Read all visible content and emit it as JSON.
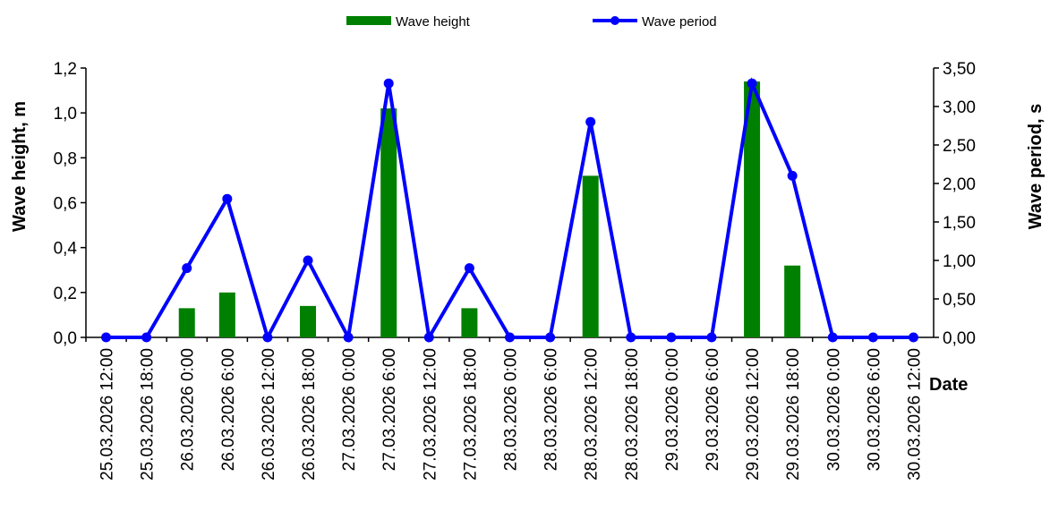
{
  "chart_data": {
    "type": "bar+line",
    "categories": [
      "25.03.2026 12:00",
      "25.03.2026 18:00",
      "26.03.2026 0:00",
      "26.03.2026 6:00",
      "26.03.2026 12:00",
      "26.03.2026 18:00",
      "27.03.2026 0:00",
      "27.03.2026 6:00",
      "27.03.2026 12:00",
      "27.03.2026 18:00",
      "28.03.2026 0:00",
      "28.03.2026 6:00",
      "28.03.2026 12:00",
      "28.03.2026 18:00",
      "29.03.2026 0:00",
      "29.03.2026 6:00",
      "29.03.2026 12:00",
      "29.03.2026 18:00",
      "30.03.2026 0:00",
      "30.03.2026 6:00",
      "30.03.2026 12:00"
    ],
    "series": [
      {
        "name": "Wave height",
        "type": "bar",
        "axis": "left",
        "color": "#008000",
        "values": [
          0,
          0,
          0.13,
          0.2,
          0,
          0.14,
          0,
          1.02,
          0,
          0.13,
          0,
          0,
          0.72,
          0,
          0,
          0,
          1.14,
          0.32,
          0,
          0,
          0
        ]
      },
      {
        "name": "Wave period",
        "type": "line",
        "axis": "right",
        "color": "#0000ff",
        "values": [
          0,
          0,
          0.9,
          1.8,
          0,
          1.0,
          0,
          3.3,
          0,
          0.9,
          0,
          0,
          2.8,
          0,
          0,
          0,
          3.3,
          2.1,
          0,
          0,
          0
        ]
      }
    ],
    "ylabel": "Wave height, m",
    "y2label": "Wave period, s",
    "xlabel": "Date",
    "ylim": [
      0,
      1.2
    ],
    "y2lim": [
      0,
      3.5
    ],
    "yticks": [
      "0,0",
      "0,2",
      "0,4",
      "0,6",
      "0,8",
      "1,0",
      "1,2"
    ],
    "y2ticks": [
      "0,00",
      "0,50",
      "1,00",
      "1,50",
      "2,00",
      "2,50",
      "3,00",
      "3,50"
    ],
    "legend_position": "top-center",
    "grid": false
  }
}
